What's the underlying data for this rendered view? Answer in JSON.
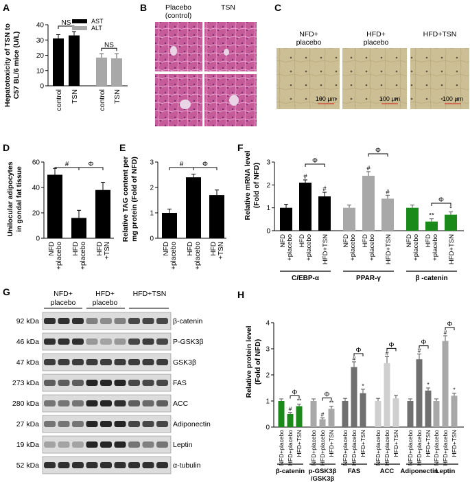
{
  "colors": {
    "black": "#000000",
    "gray": "#a8a8a8",
    "lightgray": "#cfcfcf",
    "darkgray": "#707070",
    "green": "#1a8a1a",
    "tissue_pink": "#c65b9a",
    "fat_tan": "#cdbf95"
  },
  "panels": {
    "A": {
      "letter": "A",
      "ylabel1": "Hepatotoxicity of TSN to",
      "ylabel2": "C57 BL/6 mice (U/L)",
      "legend": [
        {
          "label": "AST",
          "color": "#000000"
        },
        {
          "label": "ALT",
          "color": "#a8a8a8"
        }
      ],
      "ns": [
        "NS",
        "NS"
      ],
      "ticks": [
        "0",
        "10",
        "20",
        "30",
        "40"
      ]
    },
    "B": {
      "letter": "B",
      "title1": "Placebo",
      "title2": "(control)",
      "title3": "TSN"
    },
    "C": {
      "letter": "C",
      "labels": [
        [
          "NFD+",
          "placebo"
        ],
        [
          "HFD+",
          "placebo"
        ],
        [
          "HFD+TSN",
          ""
        ]
      ],
      "scale": "100 μm"
    },
    "D": {
      "letter": "D",
      "ylabel1": "Unilocular adipocytes",
      "ylabel2": "in gondal fat tissue",
      "ticks": [
        "0",
        "20",
        "40",
        "60"
      ],
      "sig": [
        "#",
        "Φ"
      ]
    },
    "E": {
      "letter": "E",
      "ylabel1": "Relative TAG content per",
      "ylabel2": "mg protein (Fold of NFD)",
      "ticks": [
        "0",
        "1",
        "2",
        "3"
      ],
      "sig": [
        "#",
        "Φ"
      ]
    },
    "F": {
      "letter": "F",
      "ylabel1": "Relative mRNA level",
      "ylabel2": "(Fold of NFD)",
      "ticks": [
        "0",
        "1",
        "2",
        "3"
      ],
      "groups": [
        "C/EBP-α",
        "PPAR-γ",
        "β -catenin"
      ],
      "marks": [
        "#",
        "#",
        "#",
        "#",
        "**",
        "*",
        "Φ",
        "Φ",
        "Φ"
      ]
    },
    "G": {
      "letter": "G",
      "groups": [
        [
          "NFD+",
          "placebo"
        ],
        [
          "HFD+",
          "placebo"
        ],
        [
          "HFD+TSN",
          ""
        ]
      ],
      "kda": [
        "92 kDa",
        "46 kDa",
        "47 kDa",
        "273 kDa",
        "280 kDa",
        "27 kDa",
        "19 kDa",
        "52 kDa"
      ],
      "proteins": [
        "β-catenin",
        "P-GSK3β",
        "GSK3β",
        "FAS",
        "ACC",
        "Adiponectin",
        "Leptin",
        "α-tubulin"
      ]
    },
    "H": {
      "letter": "H",
      "ylabel1": "Relative protein level",
      "ylabel2": "(Fold of NFD)",
      "ticks": [
        "0",
        "1",
        "2",
        "3",
        "4"
      ],
      "groups": [
        "β-catenin",
        "p-GSK3β",
        "/GSK3β",
        "FAS",
        "ACC",
        "Adiponectin",
        "Leptin"
      ],
      "marks": [
        "#",
        "**",
        "#",
        "**",
        "#",
        "*",
        "#",
        "#",
        "*",
        "#",
        "*",
        "Φ"
      ]
    }
  },
  "chart_data": [
    {
      "type": "bar",
      "panel": "A",
      "categories": [
        "control",
        "TSN",
        "control",
        "TSN"
      ],
      "series": [
        {
          "name": "AST",
          "values": [
            31,
            33,
            null,
            null
          ]
        },
        {
          "name": "ALT",
          "values": [
            null,
            null,
            18.5,
            18
          ]
        }
      ],
      "errors": [
        2.5,
        2.5,
        2.5,
        3
      ],
      "ylim": [
        0,
        40
      ]
    },
    {
      "type": "bar",
      "panel": "D",
      "categories": [
        "NFD +placebo",
        "HFD +placebo",
        "HFD +TSN"
      ],
      "values": [
        50,
        16,
        38
      ],
      "errors": [
        5,
        6,
        6
      ],
      "ylim": [
        0,
        60
      ]
    },
    {
      "type": "bar",
      "panel": "E",
      "categories": [
        "NFD +placebo",
        "HFD +placebo",
        "HFD +TSN"
      ],
      "values": [
        1.0,
        2.4,
        1.7
      ],
      "errors": [
        0.15,
        0.12,
        0.2
      ],
      "ylim": [
        0,
        3
      ]
    },
    {
      "type": "bar",
      "panel": "F",
      "categories": [
        "NFD +placebo",
        "HFD +placebo",
        "HFD+TSN",
        "NFD +placebo",
        "HFD +placebo",
        "HFD+TSN",
        "NFD +placebo",
        "HFD +placebo",
        "HFD+TSN"
      ],
      "values": [
        1.0,
        2.1,
        1.5,
        1.0,
        2.4,
        1.4,
        1.0,
        0.4,
        0.7
      ],
      "errors": [
        0.15,
        0.12,
        0.18,
        0.12,
        0.18,
        0.15,
        0.12,
        0.12,
        0.12
      ],
      "ylim": [
        0,
        3
      ]
    },
    {
      "type": "bar",
      "panel": "H",
      "categories": [
        "NFD+placebo",
        "HFD+placebo",
        "HFD+TSN",
        "NFD+placebo",
        "HFD+placebo",
        "HFD+TSN",
        "NFD+placebo",
        "HFD+placebo",
        "HFD+TSN",
        "NFD+placebo",
        "HFD+placebo",
        "HFD+TSN",
        "NFD+placebo",
        "HFD+placebo",
        "HFD+TSN",
        "NFD+placebo",
        "HFD+placebo",
        "HFD+TSN"
      ],
      "values": [
        1.0,
        0.5,
        0.8,
        1.0,
        0.3,
        0.7,
        1.0,
        2.3,
        1.3,
        1.0,
        2.45,
        1.1,
        1.0,
        2.6,
        1.4,
        1.0,
        3.3,
        1.2
      ],
      "errors": [
        0.08,
        0.06,
        0.08,
        0.08,
        0.05,
        0.1,
        0.1,
        0.2,
        0.15,
        0.1,
        0.25,
        0.12,
        0.08,
        0.2,
        0.1,
        0.08,
        0.2,
        0.1
      ],
      "ylim": [
        0,
        4
      ]
    }
  ]
}
